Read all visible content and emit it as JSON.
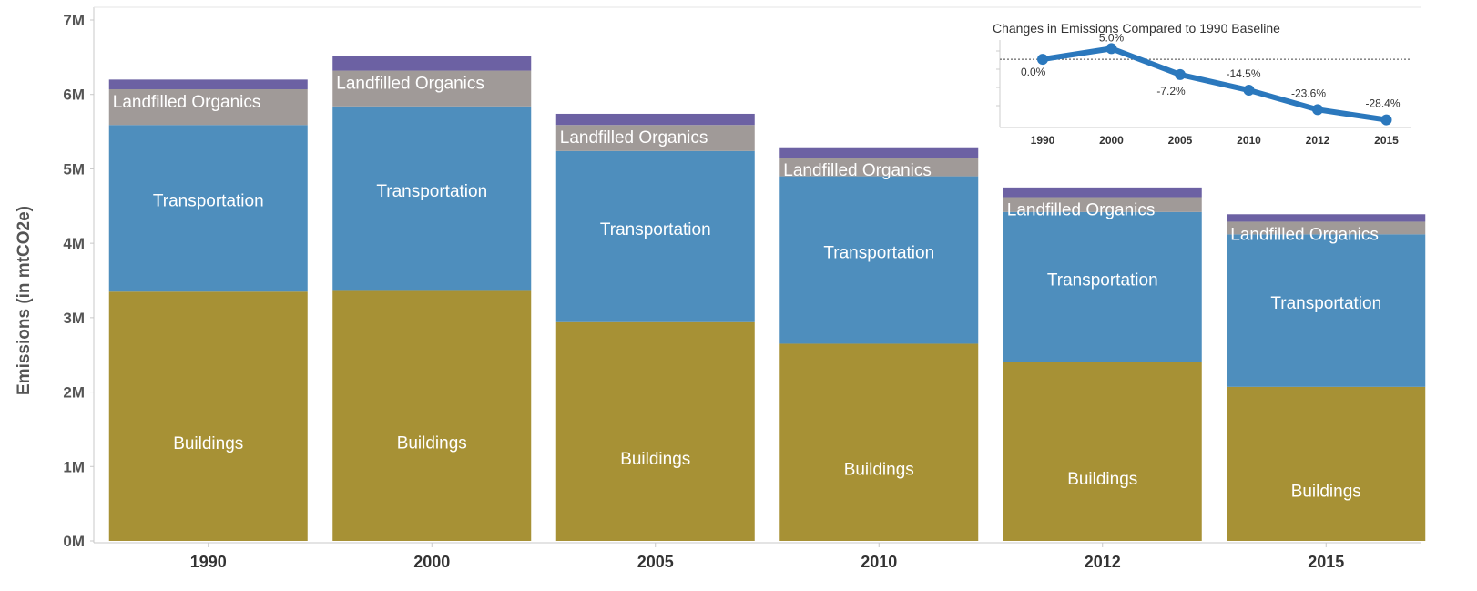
{
  "chart_data": [
    {
      "type": "bar",
      "stacked": true,
      "categories": [
        "1990",
        "2000",
        "2005",
        "2010",
        "2012",
        "2015"
      ],
      "series": [
        {
          "name": "Buildings",
          "values": [
            3350000,
            3360000,
            2940000,
            2650000,
            2400000,
            2070000
          ],
          "color": "#a79135"
        },
        {
          "name": "Transportation",
          "values": [
            2240000,
            2480000,
            2300000,
            2250000,
            2020000,
            2050000
          ],
          "color": "#4e8ebd"
        },
        {
          "name": "Landfilled Organics",
          "values": [
            480000,
            480000,
            350000,
            250000,
            200000,
            170000
          ],
          "color": "#a09a98"
        },
        {
          "name": "",
          "values": [
            130000,
            200000,
            150000,
            140000,
            130000,
            100000
          ],
          "color": "#6c61a3"
        }
      ],
      "ylabel": "Emissions (in mtCO2e)",
      "yticks": [
        "0M",
        "1M",
        "2M",
        "3M",
        "4M",
        "5M",
        "6M",
        "7M"
      ],
      "ylim": [
        0,
        7000000
      ],
      "grid": false
    },
    {
      "type": "line",
      "title": "Changes in Emissions Compared to 1990 Baseline",
      "x": [
        "1990",
        "2000",
        "2005",
        "2010",
        "2012",
        "2015"
      ],
      "values": [
        0.0,
        5.0,
        -7.2,
        -14.5,
        -23.6,
        -28.4
      ],
      "labels": [
        "0.0%",
        "5.0%",
        "-7.2%",
        "-14.5%",
        "-23.6%",
        "-28.4%"
      ],
      "ylim": [
        -32,
        9
      ],
      "baseline": 0,
      "color": "#2b78bd"
    }
  ]
}
